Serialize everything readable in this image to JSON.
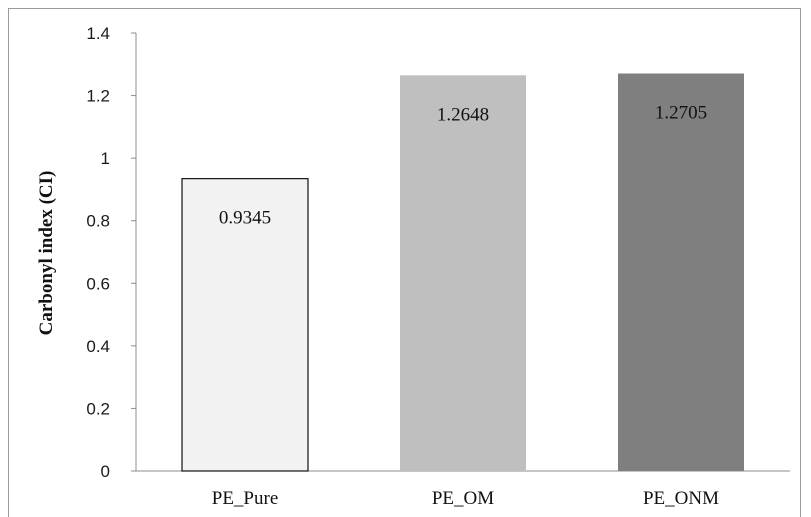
{
  "chart_data": {
    "type": "bar",
    "title": "",
    "xlabel": "",
    "ylabel": "Carbonyl index (CI)",
    "categories": [
      "PE_Pure",
      "PE_OM",
      "PE_ONM"
    ],
    "values": [
      0.9345,
      1.2648,
      1.2705
    ],
    "data_labels": [
      "0.9345",
      "1.2648",
      "1.2705"
    ],
    "colors": [
      "#f2f2f2",
      "#bfbfbf",
      "#7f7f7f"
    ],
    "bar_border": [
      "#111111",
      "none",
      "none"
    ],
    "ylim": [
      0,
      1.4
    ],
    "yticks": [
      0,
      0.2,
      0.4,
      0.6,
      0.8,
      1,
      1.2,
      1.4
    ],
    "ytick_labels": [
      "0",
      "0.2",
      "0.4",
      "0.6",
      "0.8",
      "1",
      "1.2",
      "1.4"
    ],
    "grid": false,
    "legend": "none"
  }
}
